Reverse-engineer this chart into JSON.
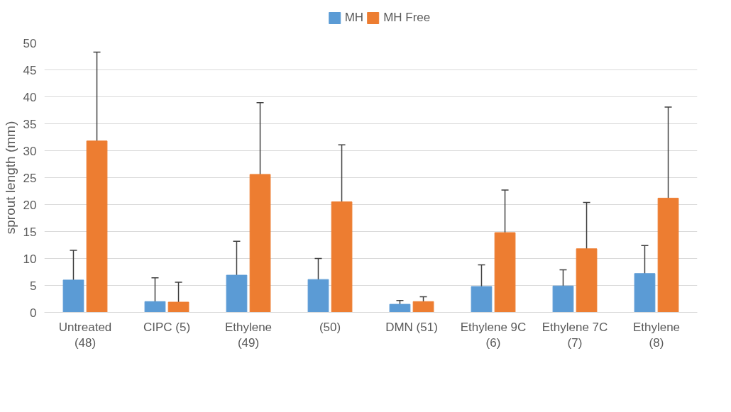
{
  "chart_data": {
    "type": "bar",
    "ylabel": "sprout length (mm)",
    "categories": [
      "Untreated (48)",
      "CIPC (5)",
      "Ethylene (49)",
      "(50)",
      "DMN (51)",
      "Ethylene 9C (6)",
      "Ethylene 7C (7)",
      "Ethylene (8)"
    ],
    "series": [
      {
        "name": "MH",
        "color": "#5b9bd5",
        "values": [
          6.0,
          2.0,
          6.9,
          6.1,
          1.5,
          4.8,
          4.9,
          7.2
        ],
        "errors": [
          5.5,
          4.4,
          6.3,
          3.9,
          0.7,
          4.0,
          3.0,
          5.2
        ]
      },
      {
        "name": "MH Free",
        "color": "#ed7d31",
        "values": [
          31.8,
          1.9,
          25.6,
          20.5,
          2.0,
          14.8,
          11.8,
          21.2
        ],
        "errors": [
          16.5,
          3.7,
          13.3,
          10.6,
          0.9,
          7.9,
          8.6,
          16.9
        ]
      }
    ],
    "ylim": [
      0,
      50
    ],
    "yticks": [
      0,
      5,
      10,
      15,
      20,
      25,
      30,
      35,
      40,
      45,
      50
    ],
    "grid": "y",
    "legend": "top"
  }
}
